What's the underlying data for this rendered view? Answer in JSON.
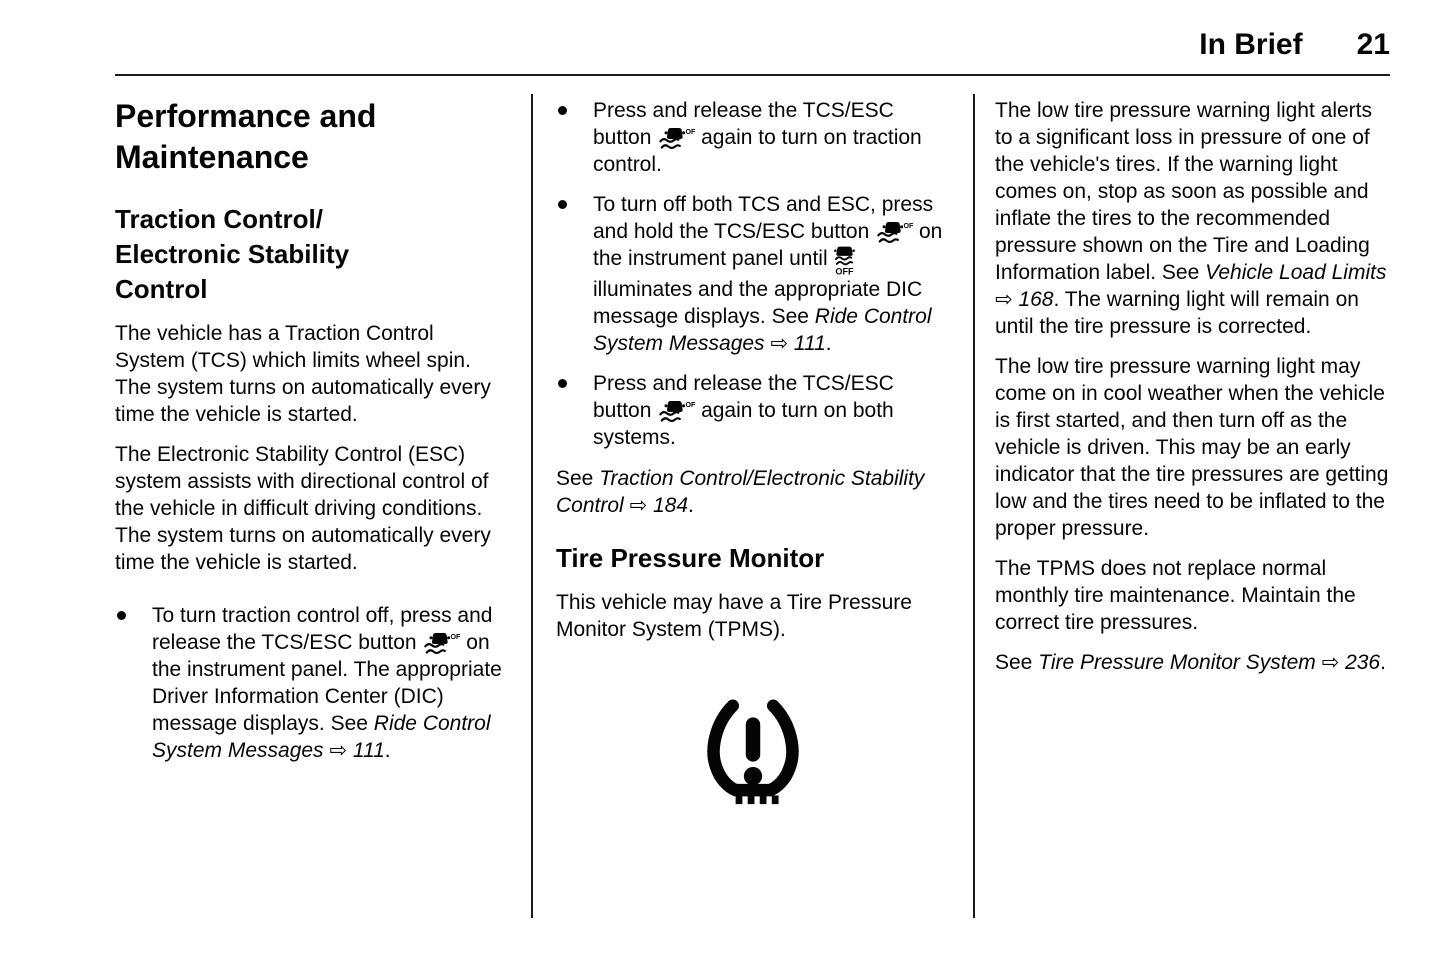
{
  "header": {
    "section_title": "In Brief",
    "page_number": "21"
  },
  "left_column": {
    "title": "Performance and\nMaintenance",
    "heading": "Traction Control/\nElectronic Stability\nControl",
    "paragraphs": [
      "The vehicle has a Traction Control System (TCS) which limits wheel spin. The system turns on automatically every time the vehicle is started.",
      "The Electronic Stability Control (ESC) system assists with directional control of the vehicle in difficult driving conditions. The system turns on automatically every time the vehicle is started."
    ],
    "bullets": [
      [
        {
          "t": "To turn traction control off, press and release the TCS/ESC button "
        },
        {
          "icon": "tcs-esc-off-inline-icon"
        },
        {
          "t": " on the instrument panel. The appropriate Driver Information Center (DIC) message displays. See "
        },
        {
          "t": "Ride Control System Messages",
          "style": "italic"
        },
        {
          "t": " "
        },
        {
          "t": "⇨",
          "style": "arrow"
        },
        {
          "t": " "
        },
        {
          "t": "111",
          "style": "italic"
        },
        {
          "t": "."
        }
      ]
    ]
  },
  "middle_column": {
    "bullets": [
      [
        {
          "t": "Press and release the TCS/ESC button "
        },
        {
          "icon": "tcs-esc-off-inline-icon"
        },
        {
          "t": " again to turn on traction control."
        }
      ],
      [
        {
          "t": "To turn off both TCS and ESC, press and hold the TCS/ESC button "
        },
        {
          "icon": "tcs-esc-off-inline-icon"
        },
        {
          "t": " on the instrument panel until "
        },
        {
          "icon": "tcs-esc-off-stacked-icon"
        },
        {
          "t": " illuminates and the appropriate DIC message displays. See "
        },
        {
          "t": "Ride Control System Messages",
          "style": "italic"
        },
        {
          "t": " "
        },
        {
          "t": "⇨",
          "style": "arrow"
        },
        {
          "t": " "
        },
        {
          "t": "111",
          "style": "italic"
        },
        {
          "t": "."
        }
      ],
      [
        {
          "t": "Press and release the TCS/ESC button "
        },
        {
          "icon": "tcs-esc-off-inline-icon"
        },
        {
          "t": " again to turn on both systems."
        }
      ]
    ],
    "see_reference": [
      {
        "t": "See "
      },
      {
        "t": "Traction Control/Electronic Stability Control",
        "style": "italic"
      },
      {
        "t": " "
      },
      {
        "t": "⇨",
        "style": "arrow"
      },
      {
        "t": " "
      },
      {
        "t": "184",
        "style": "italic"
      },
      {
        "t": "."
      }
    ],
    "heading": "Tire Pressure Monitor",
    "paragraph": "This vehicle may have a Tire Pressure Monitor System (TPMS).",
    "icon": "tpms-warning-icon"
  },
  "right_column": {
    "paragraphs": [
      [
        {
          "t": "The low tire pressure warning light alerts to a significant loss in pressure of one of the vehicle's tires. If the warning light comes on, stop as soon as possible and inflate the tires to the recommended pressure shown on the Tire and Loading Information label. See "
        },
        {
          "t": "Vehicle Load Limits",
          "style": "italic"
        },
        {
          "t": " "
        },
        {
          "t": "⇨",
          "style": "arrow"
        },
        {
          "t": " "
        },
        {
          "t": "168",
          "style": "italic"
        },
        {
          "t": ". The warning light will remain on until the tire pressure is corrected."
        }
      ],
      [
        {
          "t": "The low tire pressure warning light may come on in cool weather when the vehicle is first started, and then turn off as the vehicle is driven. This may be an early indicator that the tire pressures are getting low and the tires need to be inflated to the proper pressure."
        }
      ],
      [
        {
          "t": "The TPMS does not replace normal monthly tire maintenance. Maintain the correct tire pressures."
        }
      ],
      [
        {
          "t": "See "
        },
        {
          "t": "Tire Pressure Monitor System",
          "style": "italic"
        },
        {
          "t": " "
        },
        {
          "t": "⇨",
          "style": "arrow"
        },
        {
          "t": " "
        },
        {
          "t": "236",
          "style": "italic"
        },
        {
          "t": "."
        }
      ]
    ]
  },
  "colors": {
    "text": "#050505",
    "background": "#ffffff",
    "rule": "#1a1a1a"
  }
}
